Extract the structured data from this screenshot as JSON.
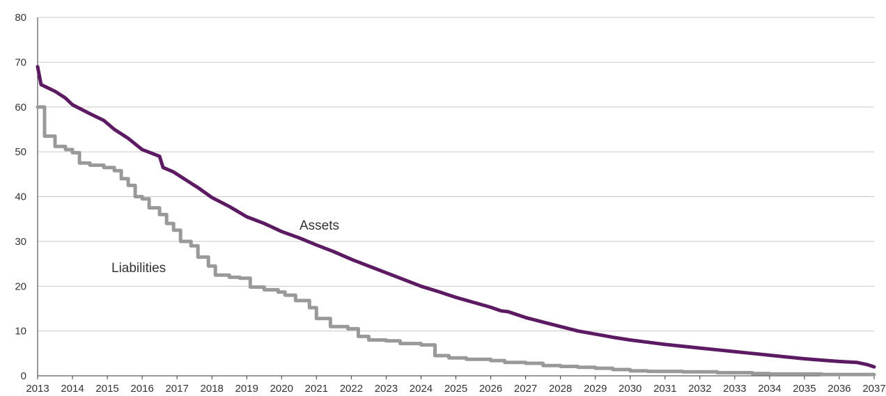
{
  "chart_data": {
    "type": "line",
    "title": "",
    "xlabel": "",
    "ylabel": "",
    "xlim": [
      2013,
      2037
    ],
    "ylim": [
      0,
      80
    ],
    "y_ticks": [
      0,
      10,
      20,
      30,
      40,
      50,
      60,
      70,
      80
    ],
    "x_ticks": [
      "2013",
      "2014",
      "2015",
      "2016",
      "2017",
      "2018",
      "2019",
      "2020",
      "2021",
      "2022",
      "2023",
      "2024",
      "2025",
      "2026",
      "2027",
      "2028",
      "2029",
      "2030",
      "2031",
      "2032",
      "2033",
      "2034",
      "2035",
      "2036",
      "2037"
    ],
    "grid": "horizontal",
    "legend": "none",
    "series": [
      {
        "name": "Assets",
        "color": "#5c1a63",
        "x": [
          2013.0,
          2013.1,
          2013.5,
          2013.8,
          2014.0,
          2014.5,
          2014.9,
          2015.2,
          2015.6,
          2016.0,
          2016.5,
          2016.6,
          2016.9,
          2017.2,
          2017.6,
          2018.0,
          2018.5,
          2019.0,
          2019.5,
          2020.0,
          2020.5,
          2021.0,
          2021.5,
          2022.0,
          2022.5,
          2023.0,
          2023.5,
          2024.0,
          2024.5,
          2025.0,
          2025.5,
          2026.0,
          2026.3,
          2026.5,
          2026.7,
          2027.0,
          2027.5,
          2028.0,
          2028.5,
          2029.0,
          2029.5,
          2030.0,
          2030.5,
          2031.0,
          2031.5,
          2032.0,
          2032.5,
          2033.0,
          2033.5,
          2034.0,
          2034.5,
          2035.0,
          2035.5,
          2036.0,
          2036.5,
          2036.8,
          2037.0
        ],
        "values": [
          69.0,
          65.0,
          63.5,
          62.0,
          60.5,
          58.5,
          57.0,
          55.0,
          53.0,
          50.5,
          49.0,
          46.5,
          45.5,
          44.0,
          42.0,
          39.8,
          37.8,
          35.5,
          34.0,
          32.2,
          30.8,
          29.2,
          27.7,
          26.0,
          24.5,
          23.0,
          21.5,
          20.0,
          18.8,
          17.5,
          16.4,
          15.3,
          14.5,
          14.3,
          13.8,
          13.0,
          12.0,
          11.0,
          10.0,
          9.3,
          8.6,
          8.0,
          7.5,
          7.0,
          6.6,
          6.2,
          5.8,
          5.4,
          5.0,
          4.6,
          4.2,
          3.8,
          3.5,
          3.2,
          3.0,
          2.5,
          2.0
        ]
      },
      {
        "name": "Liabilities",
        "color": "#999999",
        "step": true,
        "x": [
          2013.0,
          2013.2,
          2013.5,
          2013.8,
          2014.0,
          2014.2,
          2014.5,
          2014.9,
          2015.2,
          2015.4,
          2015.6,
          2015.8,
          2016.0,
          2016.2,
          2016.5,
          2016.7,
          2016.9,
          2017.1,
          2017.4,
          2017.6,
          2017.9,
          2018.1,
          2018.5,
          2018.8,
          2019.1,
          2019.5,
          2019.9,
          2020.1,
          2020.4,
          2020.8,
          2021.0,
          2021.4,
          2021.9,
          2022.2,
          2022.5,
          2023.0,
          2023.4,
          2024.0,
          2024.4,
          2024.8,
          2025.3,
          2026.0,
          2026.4,
          2027.0,
          2027.5,
          2028.0,
          2028.5,
          2029.0,
          2029.5,
          2030.0,
          2030.5,
          2031.5,
          2032.5,
          2033.5,
          2034.0,
          2034.5,
          2035.5,
          2037.0
        ],
        "values": [
          60.0,
          53.5,
          51.2,
          50.5,
          49.8,
          47.5,
          47.0,
          46.5,
          45.8,
          44.0,
          42.5,
          40.0,
          39.5,
          37.5,
          36.0,
          34.0,
          32.5,
          30.0,
          29.0,
          26.5,
          24.5,
          22.5,
          22.0,
          21.8,
          19.8,
          19.2,
          18.7,
          18.0,
          16.8,
          15.2,
          12.8,
          11.0,
          10.5,
          8.8,
          8.0,
          7.8,
          7.2,
          6.9,
          4.5,
          4.0,
          3.7,
          3.4,
          3.0,
          2.8,
          2.3,
          2.1,
          1.9,
          1.7,
          1.4,
          1.1,
          1.0,
          0.9,
          0.7,
          0.5,
          0.4,
          0.4,
          0.3,
          0.3
        ]
      }
    ]
  }
}
